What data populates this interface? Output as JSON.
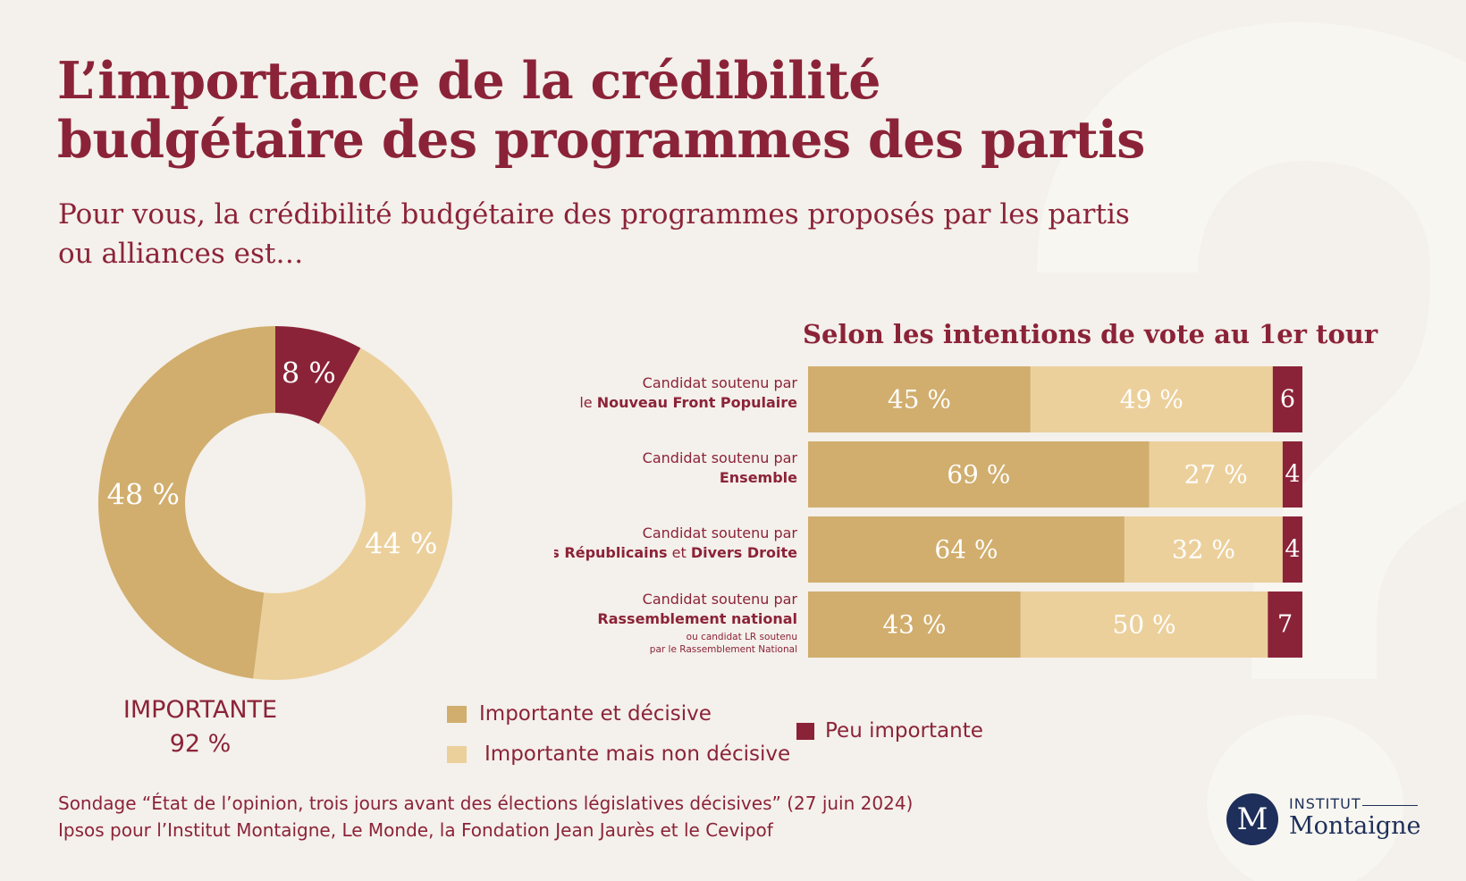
{
  "title_lines": [
    "L’importance de la crédibilité",
    "budgétaire des programmes des partis"
  ],
  "subtitle": "Pour vous, la crédibilité budgétaire des programmes proposés par les partis ou alliances est…",
  "colors": {
    "importante_decisive": "#d1ae6e",
    "importante_non_decisive": "#ecd09c",
    "peu_importante": "#8b2338",
    "text": "#8b2338",
    "logo": "#1d2f5a"
  },
  "chart_data": [
    {
      "type": "pie",
      "donut": true,
      "slices": [
        {
          "name": "Peu importante",
          "value": 8,
          "label": "8 %",
          "color_key": "peu_importante"
        },
        {
          "name": "Importante mais non décisive",
          "value": 44,
          "label": "44 %",
          "color_key": "importante_non_decisive"
        },
        {
          "name": "Importante et décisive",
          "value": 48,
          "label": "48 %",
          "color_key": "importante_decisive"
        }
      ],
      "summary_label": "IMPORTANTE",
      "summary_value": "92 %"
    },
    {
      "type": "bar",
      "orientation": "horizontal",
      "stacked": true,
      "title": "Selon les intentions de vote au 1er tour",
      "categories": [
        {
          "line1": "Candidat soutenu par",
          "line2_parts": [
            {
              "text": "le ",
              "bold": false
            },
            {
              "text": "Nouveau Front Populaire",
              "bold": true
            }
          ],
          "notes": []
        },
        {
          "line1": "Candidat soutenu par ",
          "line2_parts": [
            {
              "text": "Ensemble ",
              "bold": true
            }
          ],
          "notes": []
        },
        {
          "line1": "Candidat soutenu par",
          "line2_parts": [
            {
              "text": "Les Républicains",
              "bold": true
            },
            {
              "text": " et ",
              "bold": false
            },
            {
              "text": "Divers Droite",
              "bold": true
            }
          ],
          "notes": []
        },
        {
          "line1": "Candidat soutenu par",
          "line2_parts": [
            {
              "text": "Rassemblement national",
              "bold": true
            }
          ],
          "notes": [
            "ou candidat LR soutenu",
            "par le Rassemblement National"
          ]
        }
      ],
      "series": [
        {
          "name": "Importante et décisive",
          "color_key": "importante_decisive",
          "values": [
            45,
            69,
            64,
            43
          ],
          "labels": [
            "45 %",
            "69 %",
            "64 %",
            "43 %"
          ]
        },
        {
          "name": "Importante mais non décisive",
          "color_key": "importante_non_decisive",
          "values": [
            49,
            27,
            32,
            50
          ],
          "labels": [
            "49 %",
            "27 %",
            "32 %",
            "50 %"
          ]
        },
        {
          "name": "Peu importante",
          "color_key": "peu_importante",
          "values": [
            6,
            4,
            4,
            7
          ],
          "labels": [
            "6",
            "4",
            "4",
            "7"
          ]
        }
      ],
      "xlim": [
        0,
        100
      ]
    }
  ],
  "legend": [
    {
      "label": "Importante et décisive",
      "color_key": "importante_decisive"
    },
    {
      "label": "Importante mais non décisive",
      "color_key": "importante_non_decisive"
    },
    {
      "label": "Peu importante",
      "color_key": "peu_importante"
    }
  ],
  "footer": {
    "line1": "Sondage “État de l’opinion, trois jours avant des élections législatives décisives” (27 juin 2024)",
    "line2": "Ipsos pour l’Institut Montaigne, Le Monde, la Fondation Jean Jaurès et le Cevipof"
  },
  "logo": {
    "mark": "M",
    "top": "INSTITUT",
    "bottom": "Montaigne"
  }
}
